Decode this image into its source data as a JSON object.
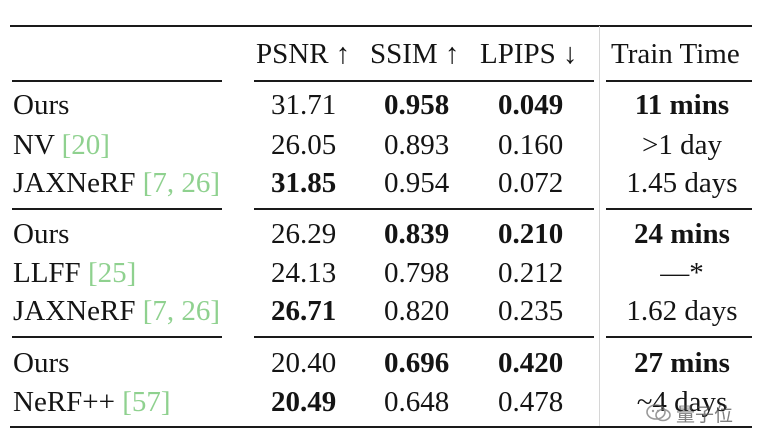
{
  "table": {
    "headers": {
      "psnr": "PSNR ↑",
      "ssim": "SSIM ↑",
      "lpips": "LPIPS ↓",
      "train_time": "Train Time"
    },
    "rows": [
      {
        "method": "Ours",
        "cite": "",
        "cite_close": "",
        "psnr": "31.71",
        "ssim": "0.958",
        "lpips": "0.049",
        "train_time": "11 mins"
      },
      {
        "method": "NV ",
        "cite": "[20]",
        "cite_close": "",
        "psnr": "26.05",
        "ssim": "0.893",
        "lpips": "0.160",
        "train_time": ">1 day"
      },
      {
        "method": "JAXNeRF ",
        "cite": "[7, 26]",
        "cite_close": "",
        "psnr": "31.85",
        "ssim": "0.954",
        "lpips": "0.072",
        "train_time": "1.45 days"
      },
      {
        "method": "Ours",
        "cite": "",
        "cite_close": "",
        "psnr": "26.29",
        "ssim": "0.839",
        "lpips": "0.210",
        "train_time": "24 mins"
      },
      {
        "method": "LLFF ",
        "cite": "[25]",
        "cite_close": "",
        "psnr": "24.13",
        "ssim": "0.798",
        "lpips": "0.212",
        "train_time": "—*"
      },
      {
        "method": "JAXNeRF ",
        "cite": "[7, 26]",
        "cite_close": "",
        "psnr": "26.71",
        "ssim": "0.820",
        "lpips": "0.235",
        "train_time": "1.62 days"
      },
      {
        "method": "Ours",
        "cite": "",
        "cite_close": "",
        "psnr": "20.40",
        "ssim": "0.696",
        "lpips": "0.420",
        "train_time": "27 mins"
      },
      {
        "method": "NeRF++ ",
        "cite": "[57]",
        "cite_close": "",
        "psnr": "20.49",
        "ssim": "0.648",
        "lpips": "0.478",
        "train_time": "~4 days"
      }
    ]
  },
  "watermark": {
    "text": "量子位"
  },
  "colors": {
    "citation": "#8fd18f",
    "text": "#141414"
  }
}
